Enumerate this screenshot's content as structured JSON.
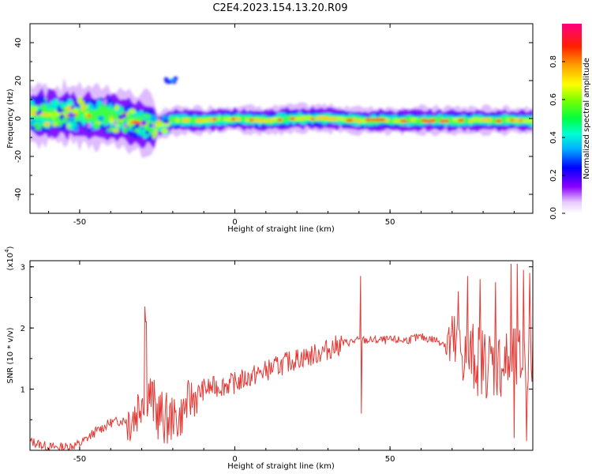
{
  "chart_data": [
    {
      "type": "heatmap",
      "title": "C2E4.2023.154.13.20.R09",
      "xlabel": "Height of straight line (km)",
      "ylabel": "Frequency (Hz)",
      "xlim": [
        -66,
        96
      ],
      "ylim": [
        -50,
        50
      ],
      "xticks": [
        "-50",
        "0",
        "50"
      ],
      "yticks": [
        "40",
        "20",
        "0",
        "-20",
        "-40"
      ],
      "colorbar": {
        "label": "Normalized spectral amplitude",
        "ticks": [
          "0.0",
          "0.2",
          "0.4",
          "0.6",
          "0.8"
        ],
        "range": [
          0,
          1
        ]
      },
      "band_center_hz": [
        [
          -66,
          3
        ],
        [
          -60,
          2
        ],
        [
          -50,
          2
        ],
        [
          -40,
          1
        ],
        [
          -35,
          -1
        ],
        [
          -30,
          -3
        ],
        [
          -25,
          -4
        ],
        [
          -20,
          -1
        ],
        [
          -15,
          -1
        ],
        [
          -10,
          -1
        ],
        [
          0,
          0
        ],
        [
          10,
          -1
        ],
        [
          20,
          0
        ],
        [
          30,
          0
        ],
        [
          40,
          -1
        ],
        [
          50,
          -1
        ],
        [
          60,
          -1
        ],
        [
          70,
          -1
        ],
        [
          80,
          -1
        ],
        [
          90,
          -1
        ],
        [
          96,
          -1
        ]
      ],
      "extra_features": [
        {
          "x": -21,
          "y": 20,
          "note": "isolated patch"
        }
      ]
    },
    {
      "type": "line",
      "xlabel": "Height of straight line (km)",
      "ylabel": "SNR (10 * v/v)",
      "y_scale_label": "(x10",
      "y_scale_exp": "4",
      "xlim": [
        -66,
        96
      ],
      "ylim": [
        0,
        3.1
      ],
      "xticks": [
        "-50",
        "0",
        "50"
      ],
      "yticks": [
        "1",
        "2",
        "3"
      ],
      "color": "#e53935",
      "series": [
        {
          "values": [
            [
              -66,
              0.15
            ],
            [
              -60,
              0.05
            ],
            [
              -55,
              0.05
            ],
            [
              -50,
              0.1
            ],
            [
              -45,
              0.3
            ],
            [
              -40,
              0.45
            ],
            [
              -35,
              0.5
            ],
            [
              -32,
              0.6
            ],
            [
              -30,
              0.9
            ],
            [
              -28,
              1.0
            ],
            [
              -25,
              0.6
            ],
            [
              -22,
              0.5
            ],
            [
              -18,
              0.5
            ],
            [
              -15,
              0.8
            ],
            [
              -10,
              1.0
            ],
            [
              -5,
              1.05
            ],
            [
              0,
              1.1
            ],
            [
              5,
              1.2
            ],
            [
              10,
              1.3
            ],
            [
              15,
              1.4
            ],
            [
              20,
              1.5
            ],
            [
              25,
              1.55
            ],
            [
              30,
              1.65
            ],
            [
              35,
              1.75
            ],
            [
              40,
              1.8
            ],
            [
              45,
              1.8
            ],
            [
              50,
              1.8
            ],
            [
              55,
              1.8
            ],
            [
              60,
              1.85
            ],
            [
              65,
              1.8
            ],
            [
              70,
              1.7
            ],
            [
              75,
              1.55
            ],
            [
              80,
              1.45
            ],
            [
              85,
              1.4
            ],
            [
              90,
              1.4
            ],
            [
              96,
              1.5
            ]
          ],
          "spikes": [
            [
              -29,
              2.35
            ],
            [
              -28.6,
              2.1
            ],
            [
              40.5,
              2.85
            ],
            [
              40.8,
              0.6
            ],
            [
              72,
              2.6
            ],
            [
              75,
              2.85
            ],
            [
              79,
              2.8
            ],
            [
              84,
              2.75
            ],
            [
              89,
              3.05
            ],
            [
              91,
              3.05
            ],
            [
              93,
              2.95
            ],
            [
              95,
              2.9
            ],
            [
              90,
              0.2
            ],
            [
              94,
              0.15
            ]
          ]
        }
      ]
    }
  ]
}
